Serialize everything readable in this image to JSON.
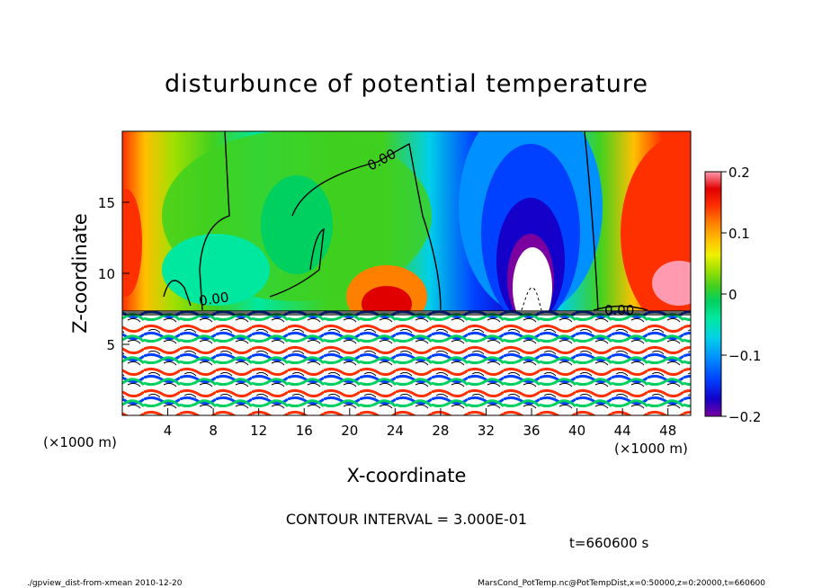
{
  "chart_data": {
    "type": "heatmap",
    "title": "disturbunce of potential temperature",
    "xlabel": "X-coordinate",
    "ylabel": "Z-coordinate",
    "x_unit": "(×1000 m)",
    "x_ticks": [
      "4",
      "8",
      "12",
      "16",
      "20",
      "24",
      "28",
      "32",
      "36",
      "40",
      "44",
      "48"
    ],
    "y_ticks": [
      "5",
      "10",
      "15"
    ],
    "xlim": [
      0,
      50
    ],
    "ylim": [
      0,
      20
    ],
    "colorbar": {
      "range": [
        -0.2,
        0.2
      ],
      "tick_labels": [
        "0.2",
        "0.1",
        "0",
        "−0.1",
        "−0.2"
      ],
      "tick_values": [
        0.2,
        0.1,
        0,
        -0.1,
        -0.2
      ]
    },
    "contour_label": "0.00",
    "contour_interval": "CONTOUR INTERVAL = 3.000E-01",
    "time": "t=660600 s"
  },
  "footer": {
    "left": "./gpview_dist-from-xmean  2010-12-20",
    "right": "MarsCond_PotTemp.nc@PotTempDist,x=0:50000,z=0:20000,t=660600"
  },
  "colors": {
    "scale": [
      "#7a00a0",
      "#1400c8",
      "#0040ff",
      "#0090ff",
      "#00d0e8",
      "#00e8a0",
      "#00d060",
      "#40d020",
      "#a0e000",
      "#f0f000",
      "#ffc000",
      "#ff8000",
      "#ff3000",
      "#e00000",
      "#ff9ab0"
    ]
  }
}
